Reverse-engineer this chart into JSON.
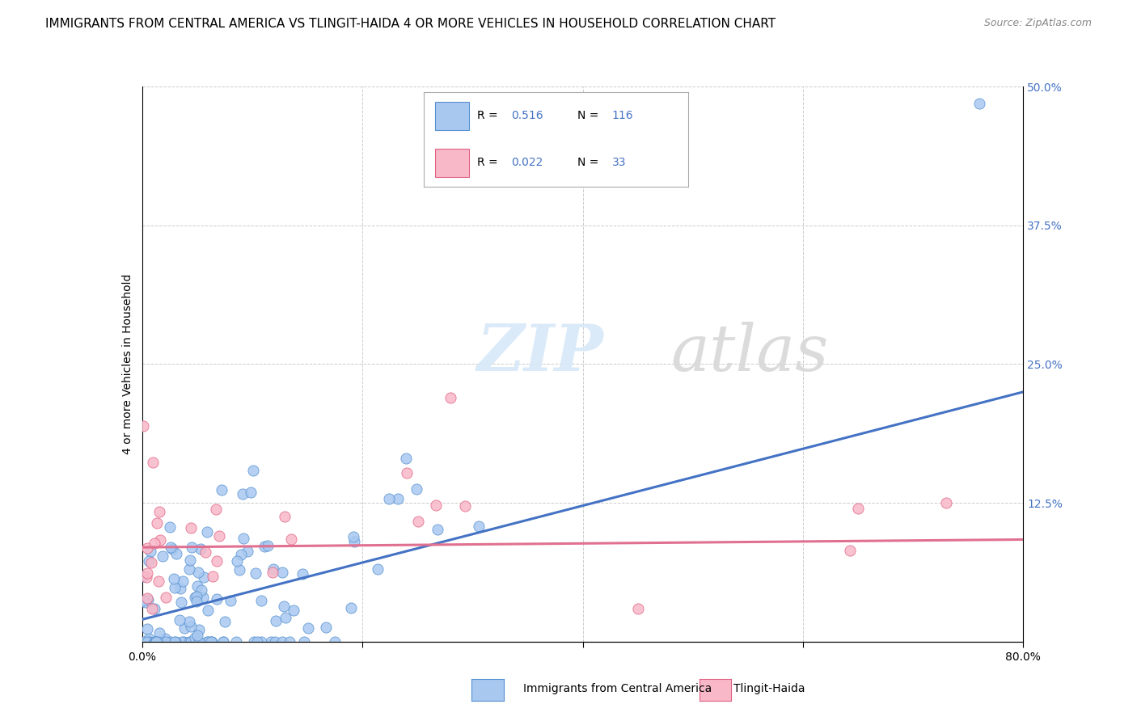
{
  "title": "IMMIGRANTS FROM CENTRAL AMERICA VS TLINGIT-HAIDA 4 OR MORE VEHICLES IN HOUSEHOLD CORRELATION CHART",
  "source": "Source: ZipAtlas.com",
  "ylabel": "4 or more Vehicles in Household",
  "xlim": [
    0.0,
    0.8
  ],
  "ylim": [
    -0.02,
    0.52
  ],
  "plot_ylim": [
    0.0,
    0.5
  ],
  "xticks": [
    0.0,
    0.2,
    0.4,
    0.6,
    0.8
  ],
  "xticklabels": [
    "0.0%",
    "",
    "",
    "",
    "80.0%"
  ],
  "yticks": [
    0.0,
    0.125,
    0.25,
    0.375,
    0.5
  ],
  "yticklabels_right": [
    "",
    "12.5%",
    "25.0%",
    "37.5%",
    "50.0%"
  ],
  "blue_color": "#a8c8f0",
  "blue_edge": "#5590d0",
  "pink_color": "#f8b8c8",
  "pink_edge": "#e06080",
  "trend_blue": "#4472c4",
  "trend_pink": "#e07090",
  "legend_label1": "Immigrants from Central America",
  "legend_label2": "Tlingit-Haida",
  "watermark_zip": "ZIP",
  "watermark_atlas": "atlas",
  "blue_trend_x": [
    0.0,
    0.8
  ],
  "blue_trend_y": [
    0.02,
    0.225
  ],
  "pink_trend_x": [
    0.0,
    0.8
  ],
  "pink_trend_y": [
    0.085,
    0.092
  ],
  "bg_color": "#ffffff",
  "grid_color": "#cccccc",
  "title_fontsize": 11,
  "axis_fontsize": 10,
  "tick_fontsize": 10,
  "right_tick_color": "#4472c4",
  "legend_box_color": "#4472c4"
}
